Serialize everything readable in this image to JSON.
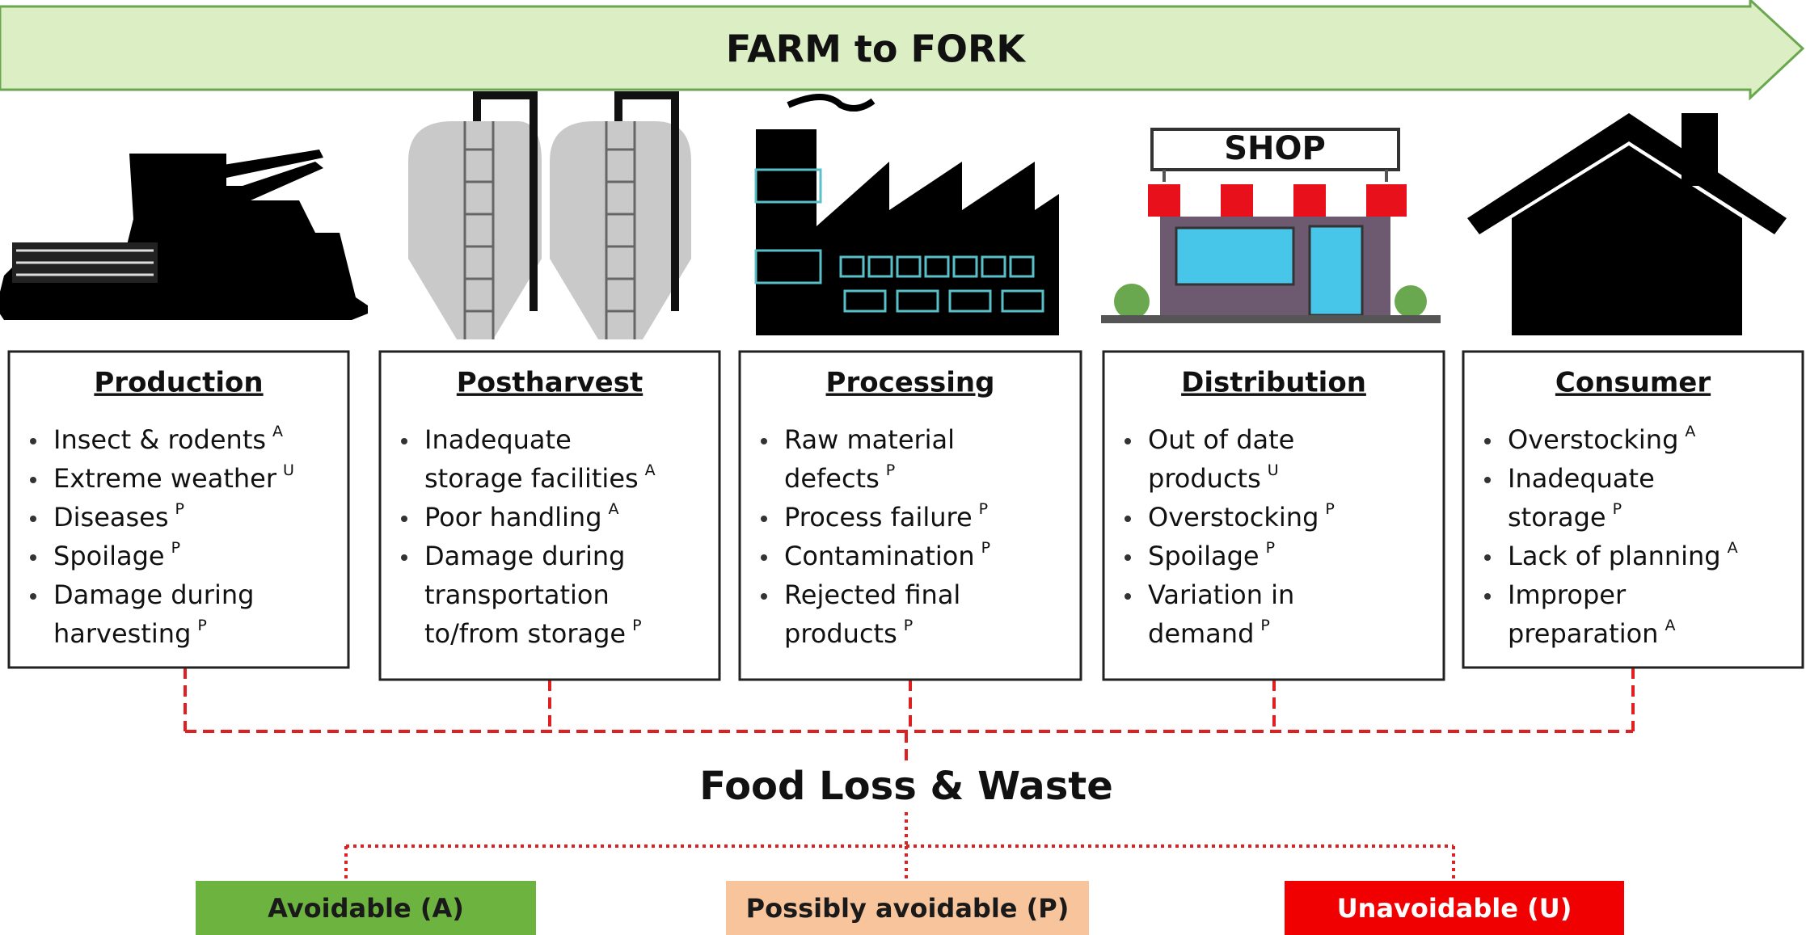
{
  "banner": {
    "title": "FARM to FORK"
  },
  "shop_sign": "SHOP",
  "stages": [
    {
      "title": "Production",
      "items": [
        {
          "lines": [
            "Insect & rodents"
          ],
          "note": "A"
        },
        {
          "lines": [
            "Extreme weather"
          ],
          "note": "U"
        },
        {
          "lines": [
            "Diseases"
          ],
          "note": "P"
        },
        {
          "lines": [
            "Spoilage"
          ],
          "note": "P"
        },
        {
          "lines": [
            "Damage during",
            "harvesting"
          ],
          "note": "P"
        }
      ]
    },
    {
      "title": "Postharvest",
      "items": [
        {
          "lines": [
            "Inadequate",
            "storage facilities"
          ],
          "note": "A"
        },
        {
          "lines": [
            "Poor handling"
          ],
          "note": "A"
        },
        {
          "lines": [
            "Damage during",
            "transportation",
            "to/from storage"
          ],
          "note": "P"
        }
      ]
    },
    {
      "title": "Processing",
      "items": [
        {
          "lines": [
            "Raw material",
            "defects"
          ],
          "note": "P"
        },
        {
          "lines": [
            "Process failure"
          ],
          "note": "P"
        },
        {
          "lines": [
            "Contamination"
          ],
          "note": "P"
        },
        {
          "lines": [
            "Rejected final",
            "products"
          ],
          "note": "P"
        }
      ]
    },
    {
      "title": "Distribution",
      "items": [
        {
          "lines": [
            "Out of date",
            "products"
          ],
          "note": "U"
        },
        {
          "lines": [
            "Overstocking"
          ],
          "note": "P"
        },
        {
          "lines": [
            "Spoilage"
          ],
          "note": "P"
        },
        {
          "lines": [
            "Variation in",
            "demand"
          ],
          "note": "P"
        }
      ]
    },
    {
      "title": "Consumer",
      "items": [
        {
          "lines": [
            "Overstocking"
          ],
          "note": "A"
        },
        {
          "lines": [
            "Inadequate",
            "storage"
          ],
          "note": "P"
        },
        {
          "lines": [
            "Lack of planning"
          ],
          "note": "A"
        },
        {
          "lines": [
            "Improper",
            "preparation"
          ],
          "note": "A"
        }
      ]
    }
  ],
  "summary": {
    "title": "Food Loss & Waste",
    "categories": [
      {
        "label": "Avoidable (A)",
        "color": "#6db33f",
        "text_color": "#1a1a1a"
      },
      {
        "label": "Possibly avoidable (P)",
        "color": "#f8c49c",
        "text_color": "#1a1a1a"
      },
      {
        "label": "Unavoidable (U)",
        "color": "#f00000",
        "text_color": "#ffffff"
      }
    ]
  }
}
